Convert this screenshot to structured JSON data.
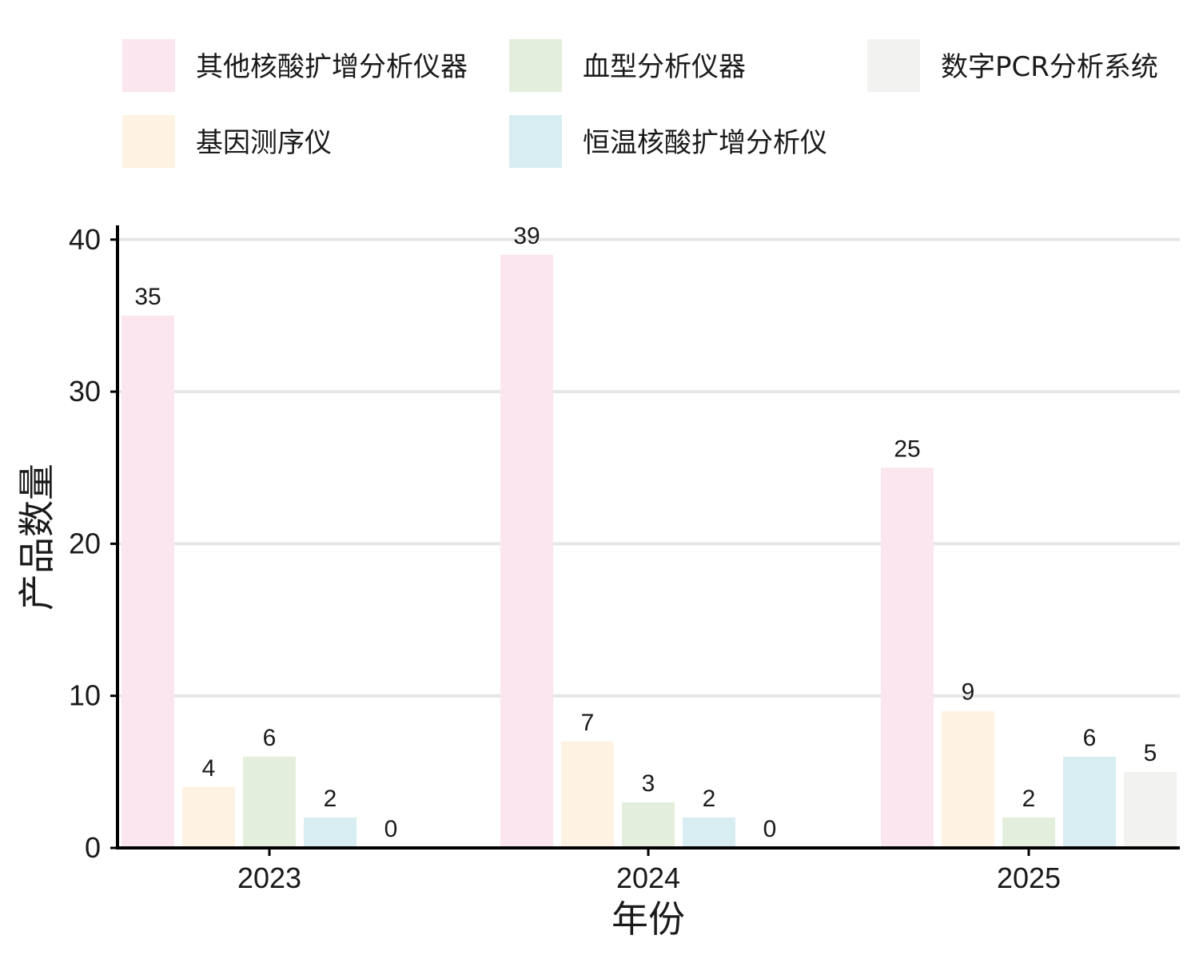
{
  "chart_data": {
    "type": "bar",
    "title": "",
    "xlabel": "年份",
    "ylabel": "产品数量",
    "categories": [
      "2023",
      "2024",
      "2025"
    ],
    "ylim": [
      0,
      41
    ],
    "yticks": [
      0,
      10,
      20,
      30,
      40
    ],
    "grid": "horizontal",
    "legend_position": "top",
    "series": [
      {
        "name": "其他核酸扩增分析仪器",
        "color": "#fbe5ef",
        "values": [
          35,
          39,
          25
        ]
      },
      {
        "name": "基因测序仪",
        "color": "#fef2e2",
        "values": [
          4,
          7,
          9
        ]
      },
      {
        "name": "血型分析仪器",
        "color": "#e3efdc",
        "values": [
          6,
          3,
          2
        ]
      },
      {
        "name": "恒温核酸扩增分析仪",
        "color": "#d8edf1",
        "values": [
          2,
          2,
          6
        ]
      },
      {
        "name": "数字PCR分析系统",
        "color": "#f2f2f0",
        "values": [
          0,
          0,
          5
        ]
      }
    ]
  }
}
